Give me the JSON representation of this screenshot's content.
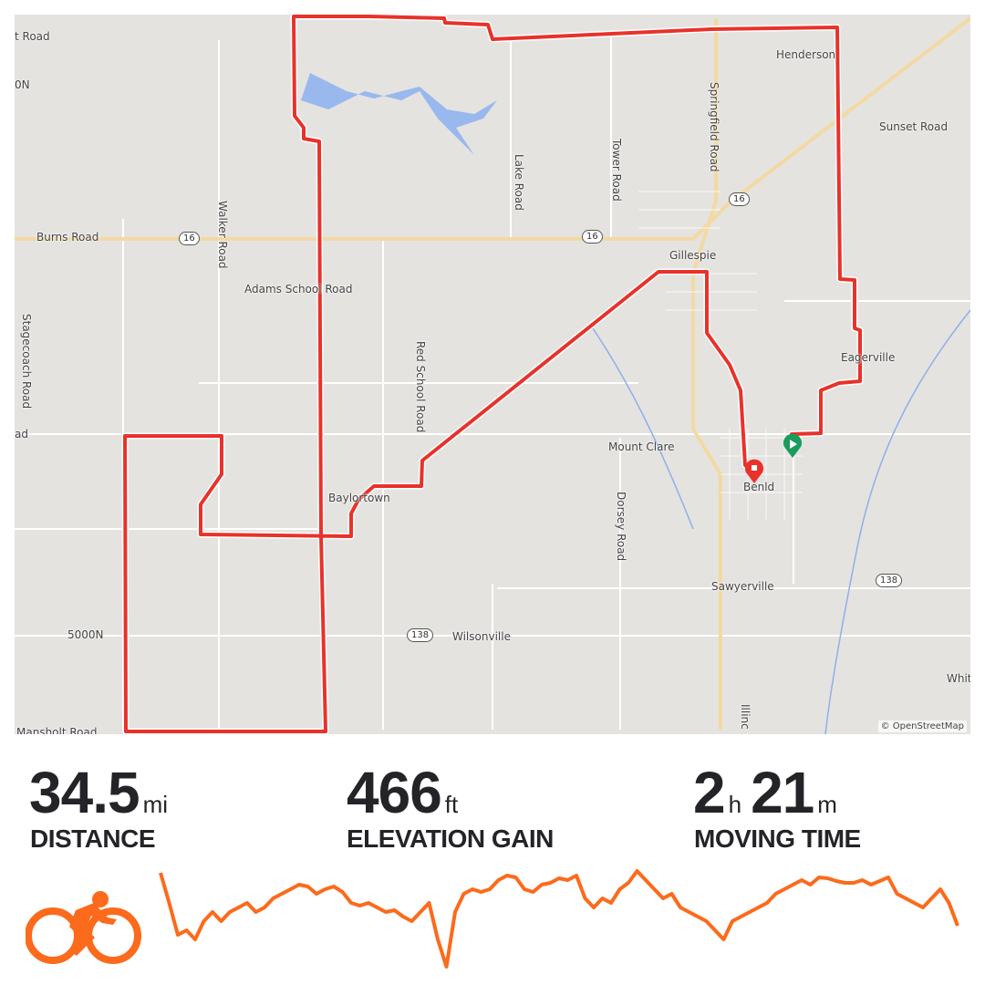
{
  "map": {
    "labels": [
      "t Road",
      "0N",
      "Burns Road",
      "Walker Road",
      "Adams School Road",
      "Stagecoach Road",
      "ad",
      "5000N",
      "Mansholt Road",
      "Baylortown",
      "Red School Road",
      "Lake Road",
      "Tower Road",
      "Springfield Road",
      "Henderson",
      "Sunset Road",
      "Gillespie",
      "Eagerville",
      "Mount Clare",
      "Benld",
      "Dorsey Road",
      "Sawyerville",
      "Wilsonville",
      "Whit",
      "Illinc"
    ],
    "shields": [
      "16",
      "16",
      "16",
      "138",
      "138"
    ],
    "attribution": "© OpenStreetMap",
    "route_color": "#e8322a",
    "start_marker_color": "#1a9c5b",
    "end_marker_color": "#e8322a"
  },
  "stats": [
    {
      "value": "34.5",
      "unit": "mi",
      "label": "DISTANCE"
    },
    {
      "value": "466",
      "unit": "ft",
      "label": "ELEVATION GAIN"
    },
    {
      "hours": "2",
      "hours_unit": "h",
      "minutes": "21",
      "minutes_unit": "m",
      "label": "MOVING TIME"
    }
  ],
  "activity_icon": "cycling-icon",
  "accent_color": "#fc6a1b",
  "elevation_profile": [
    103,
    70,
    35,
    40,
    30,
    50,
    60,
    50,
    60,
    65,
    70,
    60,
    65,
    75,
    80,
    85,
    90,
    88,
    80,
    85,
    88,
    82,
    70,
    67,
    70,
    65,
    60,
    62,
    55,
    50,
    60,
    70,
    30,
    0,
    60,
    80,
    85,
    82,
    85,
    95,
    100,
    98,
    85,
    82,
    90,
    92,
    97,
    95,
    100,
    75,
    65,
    75,
    70,
    85,
    92,
    105,
    95,
    85,
    75,
    80,
    65,
    60,
    55,
    50,
    40,
    30,
    50,
    55,
    60,
    65,
    70,
    80,
    85,
    90,
    95,
    90,
    98,
    97,
    94,
    92,
    92,
    95,
    90,
    94,
    98,
    80,
    75,
    70,
    65,
    75,
    85,
    70,
    45
  ]
}
